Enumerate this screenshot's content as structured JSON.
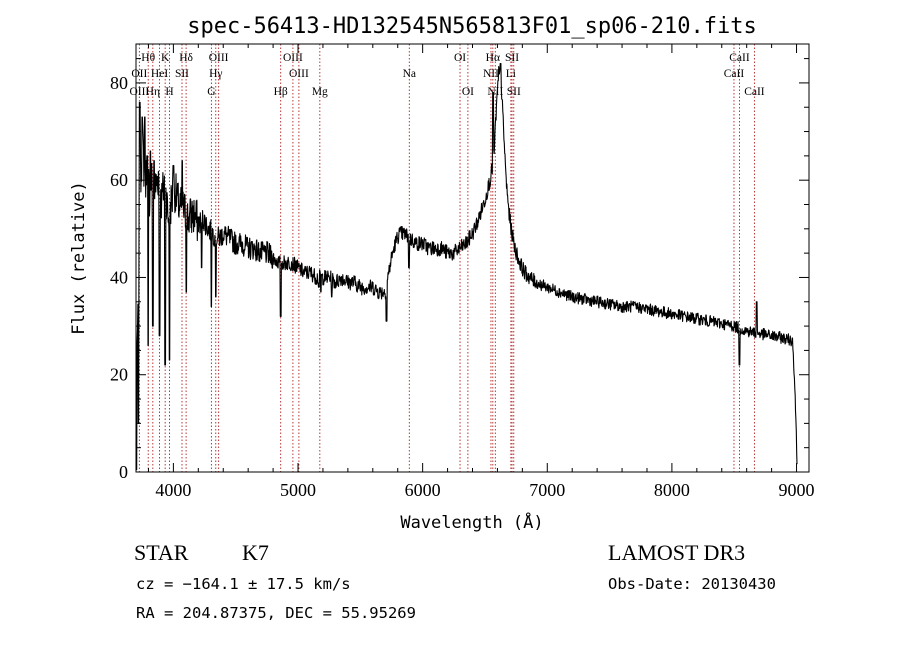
{
  "chart_data": {
    "type": "line",
    "title": "spec-56413-HD132545N565813F01_sp06-210.fits",
    "xlabel": "Wavelength (Å)",
    "ylabel": "Flux (relative)",
    "xlim": [
      3700,
      9100
    ],
    "ylim": [
      0,
      88
    ],
    "x_ticks": [
      4000,
      5000,
      6000,
      7000,
      8000,
      9000
    ],
    "x_tick_labels": [
      "4000",
      "5000",
      "6000",
      "7000",
      "8000",
      "9000"
    ],
    "y_ticks": [
      0,
      20,
      40,
      60,
      80
    ],
    "y_tick_labels": [
      "0",
      "20",
      "40",
      "60",
      "80"
    ],
    "series": [
      {
        "name": "flux",
        "color": "#000000",
        "anchors": [
          [
            3700,
            5
          ],
          [
            3712,
            28
          ],
          [
            3725,
            55
          ],
          [
            3740,
            62
          ],
          [
            3755,
            68
          ],
          [
            3770,
            58
          ],
          [
            3790,
            64
          ],
          [
            3810,
            56
          ],
          [
            3830,
            62
          ],
          [
            3850,
            58
          ],
          [
            3880,
            61
          ],
          [
            3900,
            55
          ],
          [
            3930,
            60
          ],
          [
            3960,
            52
          ],
          [
            3985,
            56
          ],
          [
            4010,
            58
          ],
          [
            4040,
            55
          ],
          [
            4080,
            54
          ],
          [
            4120,
            52
          ],
          [
            4160,
            53
          ],
          [
            4200,
            51
          ],
          [
            4240,
            52
          ],
          [
            4280,
            50
          ],
          [
            4320,
            49
          ],
          [
            4360,
            48
          ],
          [
            4400,
            49
          ],
          [
            4450,
            48
          ],
          [
            4500,
            47
          ],
          [
            4550,
            47
          ],
          [
            4600,
            46
          ],
          [
            4650,
            46
          ],
          [
            4700,
            45
          ],
          [
            4750,
            45
          ],
          [
            4800,
            44
          ],
          [
            4850,
            43
          ],
          [
            4900,
            43
          ],
          [
            4950,
            43
          ],
          [
            5000,
            42
          ],
          [
            5050,
            41
          ],
          [
            5100,
            41
          ],
          [
            5150,
            40
          ],
          [
            5200,
            40
          ],
          [
            5250,
            40
          ],
          [
            5300,
            39
          ],
          [
            5350,
            40
          ],
          [
            5400,
            39
          ],
          [
            5450,
            39
          ],
          [
            5500,
            38
          ],
          [
            5550,
            38
          ],
          [
            5600,
            38
          ],
          [
            5650,
            37
          ],
          [
            5700,
            37
          ],
          [
            5720,
            40
          ],
          [
            5750,
            44
          ],
          [
            5780,
            47
          ],
          [
            5810,
            49
          ],
          [
            5850,
            49
          ],
          [
            5900,
            48
          ],
          [
            5950,
            47
          ],
          [
            6000,
            47
          ],
          [
            6050,
            46
          ],
          [
            6100,
            46
          ],
          [
            6150,
            46
          ],
          [
            6200,
            45
          ],
          [
            6250,
            45
          ],
          [
            6300,
            46
          ],
          [
            6350,
            47
          ],
          [
            6400,
            49
          ],
          [
            6450,
            52
          ],
          [
            6500,
            56
          ],
          [
            6540,
            60
          ],
          [
            6570,
            64
          ],
          [
            6590,
            74
          ],
          [
            6610,
            82
          ],
          [
            6630,
            80
          ],
          [
            6650,
            70
          ],
          [
            6670,
            60
          ],
          [
            6690,
            54
          ],
          [
            6710,
            50
          ],
          [
            6740,
            46
          ],
          [
            6780,
            43
          ],
          [
            6820,
            41
          ],
          [
            6900,
            39
          ],
          [
            7000,
            38
          ],
          [
            7100,
            37
          ],
          [
            7200,
            36
          ],
          [
            7300,
            35.5
          ],
          [
            7400,
            35
          ],
          [
            7500,
            34.5
          ],
          [
            7600,
            34
          ],
          [
            7700,
            34
          ],
          [
            7800,
            33.5
          ],
          [
            7900,
            33
          ],
          [
            8000,
            32.5
          ],
          [
            8100,
            32
          ],
          [
            8200,
            31.5
          ],
          [
            8300,
            31
          ],
          [
            8400,
            30.5
          ],
          [
            8500,
            30
          ],
          [
            8600,
            29
          ],
          [
            8700,
            28.5
          ],
          [
            8800,
            28
          ],
          [
            8900,
            27.5
          ],
          [
            8970,
            27
          ],
          [
            8990,
            15
          ],
          [
            9005,
            1
          ]
        ],
        "dips": [
          [
            3705,
            0.5
          ],
          [
            3720,
            10
          ],
          [
            3798,
            26
          ],
          [
            3835,
            30
          ],
          [
            3889,
            28
          ],
          [
            3934,
            22
          ],
          [
            3969,
            23
          ],
          [
            4103,
            37
          ],
          [
            4227,
            42
          ],
          [
            4305,
            34
          ],
          [
            4340,
            36
          ],
          [
            4861,
            32
          ],
          [
            5167,
            38
          ],
          [
            5184,
            37
          ],
          [
            5270,
            36
          ],
          [
            5710,
            31
          ],
          [
            5890,
            42
          ],
          [
            8542,
            22
          ]
        ],
        "spikes": [
          [
            3730,
            76
          ],
          [
            3750,
            73
          ],
          [
            3770,
            73
          ],
          [
            3790,
            65
          ],
          [
            3815,
            66
          ],
          [
            3845,
            64
          ],
          [
            4000,
            63
          ],
          [
            4070,
            64
          ],
          [
            6565,
            78
          ],
          [
            6625,
            84
          ],
          [
            8680,
            35
          ]
        ]
      }
    ],
    "spectral_lines": [
      {
        "label": "Hθ",
        "wavelength": 3798,
        "row": 0
      },
      {
        "label": "K",
        "wavelength": 3934,
        "row": 0
      },
      {
        "label": "Hδ",
        "wavelength": 4102,
        "row": 0
      },
      {
        "label": "OIII",
        "wavelength": 4363,
        "row": 0
      },
      {
        "label": "OIII",
        "wavelength": 4959,
        "row": 0
      },
      {
        "label": "OI",
        "wavelength": 6300,
        "row": 0
      },
      {
        "label": "Hα",
        "wavelength": 6563,
        "row": 0
      },
      {
        "label": "SII",
        "wavelength": 6717,
        "row": 0
      },
      {
        "label": "CaII",
        "wavelength": 8542,
        "row": 0
      },
      {
        "label": "OII",
        "wavelength": 3727,
        "row": 1
      },
      {
        "label": "HeI",
        "wavelength": 3889,
        "row": 1
      },
      {
        "label": "SII",
        "wavelength": 4069,
        "row": 1
      },
      {
        "label": "Hγ",
        "wavelength": 4340,
        "row": 1
      },
      {
        "label": "OIII",
        "wavelength": 5007,
        "row": 1
      },
      {
        "label": "Na",
        "wavelength": 5893,
        "row": 1
      },
      {
        "label": "NII",
        "wavelength": 6548,
        "row": 1
      },
      {
        "label": "Li",
        "wavelength": 6708,
        "row": 1
      },
      {
        "label": "CaII",
        "wavelength": 8498,
        "row": 1
      },
      {
        "label": "OIII",
        "wavelength": 3727,
        "row": 2
      },
      {
        "label": "Hη",
        "wavelength": 3835,
        "row": 2
      },
      {
        "label": "H",
        "wavelength": 3969,
        "row": 2
      },
      {
        "label": "G",
        "wavelength": 4305,
        "row": 2
      },
      {
        "label": "Hβ",
        "wavelength": 4861,
        "row": 2
      },
      {
        "label": "Mg",
        "wavelength": 5175,
        "row": 2
      },
      {
        "label": "OI",
        "wavelength": 6363,
        "row": 2
      },
      {
        "label": "NII",
        "wavelength": 6583,
        "row": 2
      },
      {
        "label": "SII",
        "wavelength": 6731,
        "row": 2
      },
      {
        "label": "CaII",
        "wavelength": 8662,
        "row": 2
      }
    ],
    "line_marker_wavelengths": [
      3727,
      3798,
      3835,
      3889,
      3934,
      3969,
      4069,
      4102,
      4305,
      4340,
      4363,
      4861,
      4959,
      5007,
      5175,
      5893,
      6300,
      6363,
      6548,
      6563,
      6583,
      6708,
      6717,
      6731,
      8498,
      8542,
      8662
    ],
    "marker_color": "#b22222"
  },
  "info": {
    "class_label": "STAR",
    "subclass": "K7",
    "cz": "cz = −164.1 ± 17.5 km/s",
    "coords": "RA = 204.87375, DEC =  55.95269",
    "survey": "LAMOST DR3",
    "obs_date": "Obs-Date: 20130430"
  }
}
